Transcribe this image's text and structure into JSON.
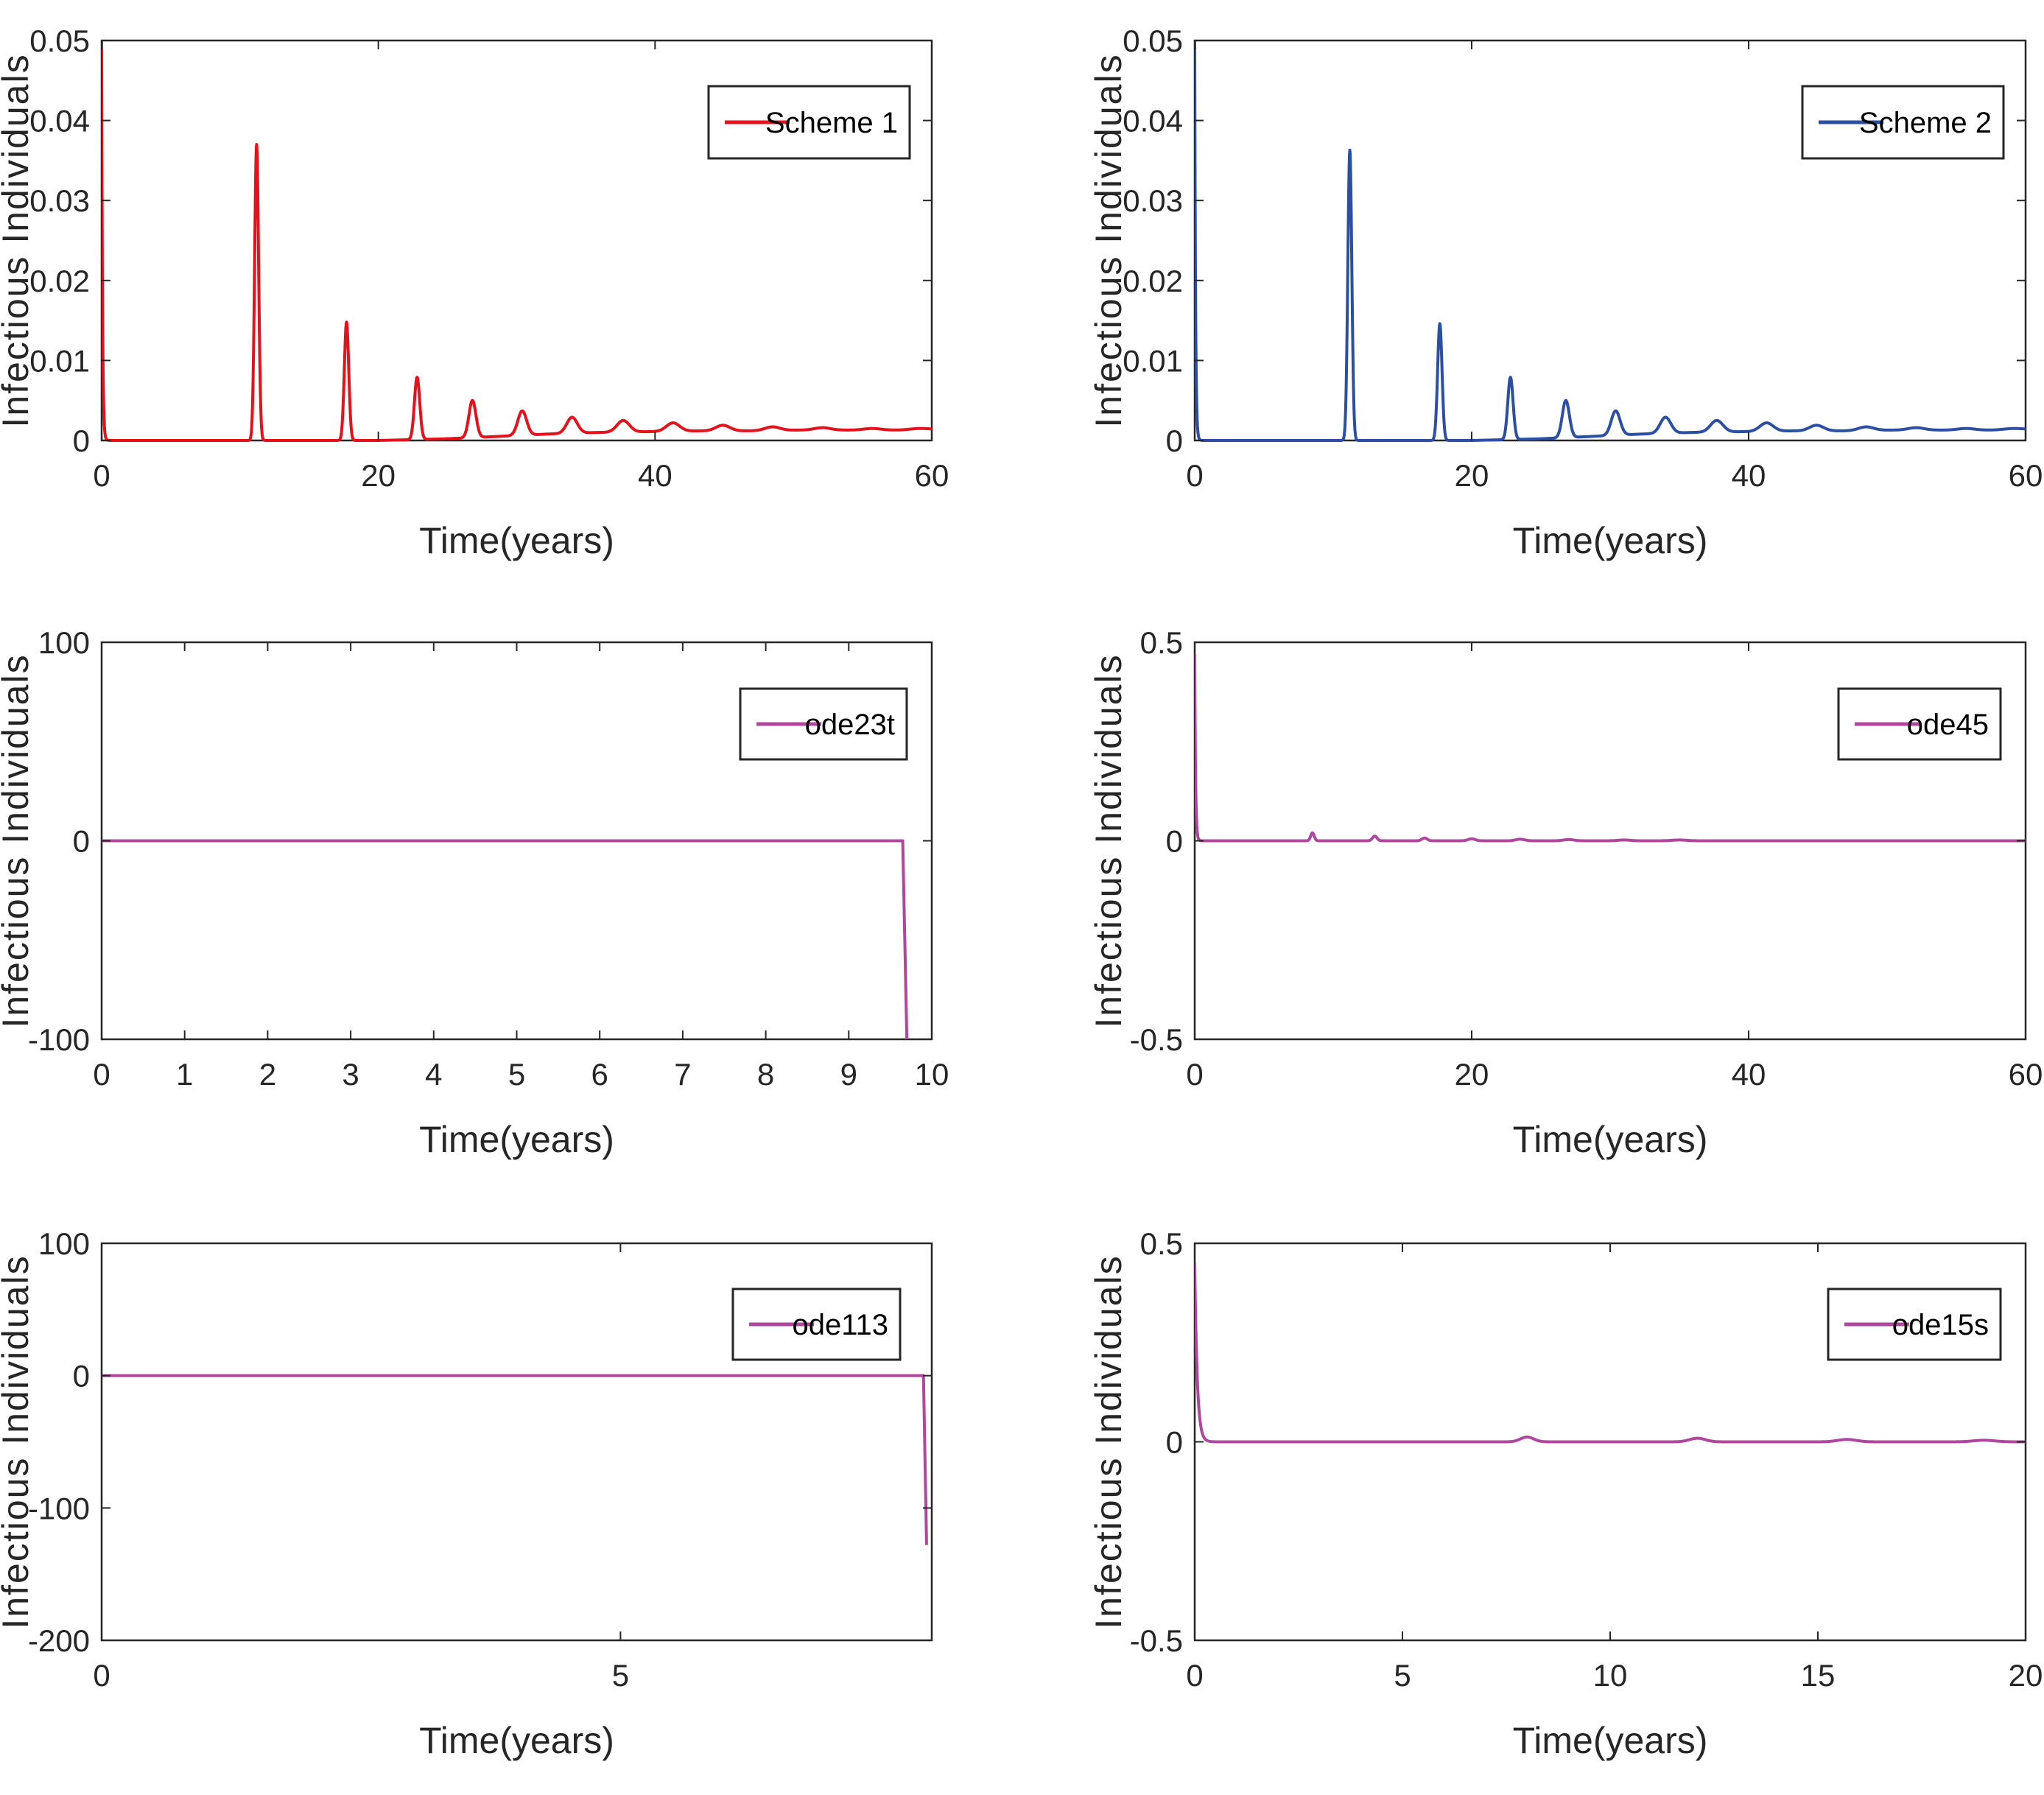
{
  "chart_data": [
    {
      "type": "line",
      "legend": "Scheme 1",
      "color": "#e3121b",
      "xlabel": "Time(years)",
      "ylabel": "Infectious Individuals",
      "xlim": [
        0,
        60
      ],
      "ylim": [
        0,
        0.05
      ],
      "xticks": [
        0,
        20,
        40,
        60
      ],
      "xtick_labels": [
        "0",
        "20",
        "40",
        "60"
      ],
      "yticks": [
        0,
        0.01,
        0.02,
        0.03,
        0.04,
        0.05
      ],
      "ytick_labels": [
        "0",
        "0.01",
        "0.02",
        "0.03",
        "0.04",
        "0.05"
      ],
      "legend_position": "top-right",
      "initial_value": 0.05,
      "peaks": [
        [
          11.2,
          0.037
        ],
        [
          17.7,
          0.0148
        ],
        [
          22.8,
          0.0079
        ],
        [
          26.8,
          0.005
        ],
        [
          30.4,
          0.0037
        ],
        [
          34.0,
          0.0029
        ],
        [
          37.7,
          0.0025
        ],
        [
          41.3,
          0.0022
        ],
        [
          44.9,
          0.0019
        ],
        [
          48.5,
          0.0017
        ],
        [
          52.1,
          0.0016
        ],
        [
          55.7,
          0.0015
        ],
        [
          59.2,
          0.0015
        ]
      ],
      "troughs": [
        [
          14.0,
          0.0
        ],
        [
          20.0,
          0.0
        ],
        [
          24.8,
          0.0002
        ],
        [
          28.6,
          0.0005
        ],
        [
          32.2,
          0.0008
        ],
        [
          35.8,
          0.001
        ],
        [
          39.5,
          0.0011
        ],
        [
          43.1,
          0.0012
        ],
        [
          46.7,
          0.0012
        ],
        [
          50.3,
          0.0013
        ],
        [
          53.9,
          0.0013
        ],
        [
          57.5,
          0.0013
        ],
        [
          60.0,
          0.0014
        ]
      ],
      "peak_widths": [
        0.45,
        0.5,
        0.6,
        0.8,
        1.0,
        1.2,
        1.4,
        1.5,
        1.6,
        1.7,
        1.8,
        1.9,
        2.0
      ]
    },
    {
      "type": "line",
      "legend": "Scheme 2",
      "color": "#2a4fa3",
      "xlabel": "Time(years)",
      "ylabel": "Infectious Individuals",
      "xlim": [
        0,
        60
      ],
      "ylim": [
        0,
        0.05
      ],
      "xticks": [
        0,
        20,
        40,
        60
      ],
      "xtick_labels": [
        "0",
        "20",
        "40",
        "60"
      ],
      "yticks": [
        0,
        0.01,
        0.02,
        0.03,
        0.04,
        0.05
      ],
      "ytick_labels": [
        "0",
        "0.01",
        "0.02",
        "0.03",
        "0.04",
        "0.05"
      ],
      "legend_position": "top-right",
      "initial_value": 0.05,
      "peaks": [
        [
          11.2,
          0.0363
        ],
        [
          17.7,
          0.0146
        ],
        [
          22.8,
          0.0079
        ],
        [
          26.8,
          0.005
        ],
        [
          30.4,
          0.0037
        ],
        [
          34.0,
          0.0029
        ],
        [
          37.7,
          0.0025
        ],
        [
          41.3,
          0.0022
        ],
        [
          44.9,
          0.0019
        ],
        [
          48.5,
          0.0017
        ],
        [
          52.1,
          0.0016
        ],
        [
          55.7,
          0.0015
        ],
        [
          59.2,
          0.0015
        ]
      ],
      "troughs": [
        [
          14.0,
          0.0
        ],
        [
          20.0,
          0.0
        ],
        [
          24.8,
          0.0002
        ],
        [
          28.6,
          0.0005
        ],
        [
          32.2,
          0.0008
        ],
        [
          35.8,
          0.001
        ],
        [
          39.5,
          0.0011
        ],
        [
          43.1,
          0.0012
        ],
        [
          46.7,
          0.0012
        ],
        [
          50.3,
          0.0013
        ],
        [
          53.9,
          0.0013
        ],
        [
          57.5,
          0.0013
        ],
        [
          60.0,
          0.0014
        ]
      ],
      "peak_widths": [
        0.45,
        0.5,
        0.6,
        0.8,
        1.0,
        1.2,
        1.4,
        1.5,
        1.6,
        1.7,
        1.8,
        1.9,
        2.0
      ]
    },
    {
      "type": "line",
      "legend": "ode23t",
      "color": "#b0479f",
      "xlabel": "Time(years)",
      "ylabel": "Infectious Individuals",
      "xlim": [
        0,
        10
      ],
      "ylim": [
        -100,
        100
      ],
      "xticks": [
        0,
        1,
        2,
        3,
        4,
        5,
        6,
        7,
        8,
        9,
        10
      ],
      "xtick_labels": [
        "0",
        "1",
        "2",
        "3",
        "4",
        "5",
        "6",
        "7",
        "8",
        "9",
        "10"
      ],
      "yticks": [
        -100,
        0,
        100
      ],
      "ytick_labels": [
        "-100",
        "0",
        "100"
      ],
      "legend_position": "top-right",
      "points": [
        [
          0,
          0
        ],
        [
          9.65,
          0
        ],
        [
          9.7,
          -100
        ]
      ]
    },
    {
      "type": "line",
      "legend": "ode45",
      "color": "#b0479f",
      "xlabel": "Time(years)",
      "ylabel": "Infectious Individuals",
      "xlim": [
        0,
        60
      ],
      "ylim": [
        -0.5,
        0.5
      ],
      "xticks": [
        0,
        20,
        40,
        60
      ],
      "xtick_labels": [
        "0",
        "20",
        "40",
        "60"
      ],
      "yticks": [
        -0.5,
        0,
        0.5
      ],
      "ytick_labels": [
        "-0.5",
        "0",
        "0.5"
      ],
      "legend_position": "top-right",
      "initial_value": 0.47,
      "peaks": [
        [
          8.5,
          0.02
        ],
        [
          13.0,
          0.012
        ],
        [
          16.6,
          0.007
        ],
        [
          20.0,
          0.005
        ],
        [
          23.5,
          0.004
        ],
        [
          27.0,
          0.003
        ],
        [
          31.0,
          0.002
        ],
        [
          35.0,
          0.002
        ]
      ],
      "peak_widths": [
        0.4,
        0.5,
        0.6,
        0.8,
        1.0,
        1.2,
        1.4,
        1.6
      ]
    },
    {
      "type": "line",
      "legend": "ode113",
      "color": "#b0479f",
      "xlabel": "Time(years)",
      "ylabel": "Infectious Individuals",
      "xlim": [
        0,
        8
      ],
      "ylim": [
        -200,
        100
      ],
      "xticks": [
        0,
        5
      ],
      "xtick_labels": [
        "0",
        "5"
      ],
      "yticks": [
        -200,
        -100,
        0,
        100
      ],
      "ytick_labels": [
        "-200",
        "-100",
        "0",
        "100"
      ],
      "legend_position": "top-right",
      "points": [
        [
          0,
          0
        ],
        [
          7.92,
          0
        ],
        [
          7.95,
          -128
        ]
      ]
    },
    {
      "type": "line",
      "legend": "ode15s",
      "color": "#b0479f",
      "xlabel": "Time(years)",
      "ylabel": "Infectious Individuals",
      "xlim": [
        0,
        20
      ],
      "ylim": [
        -0.5,
        0.5
      ],
      "xticks": [
        0,
        5,
        10,
        15,
        20
      ],
      "xtick_labels": [
        "0",
        "5",
        "10",
        "15",
        "20"
      ],
      "yticks": [
        -0.5,
        0,
        0.5
      ],
      "ytick_labels": [
        "-0.5",
        "0",
        "0.5"
      ],
      "legend_position": "top-right",
      "initial_value": 0.45,
      "peaks": [
        [
          8.0,
          0.012
        ],
        [
          12.1,
          0.009
        ],
        [
          15.7,
          0.006
        ],
        [
          19.0,
          0.004
        ]
      ],
      "peak_widths": [
        0.5,
        0.6,
        0.7,
        0.8
      ]
    }
  ]
}
